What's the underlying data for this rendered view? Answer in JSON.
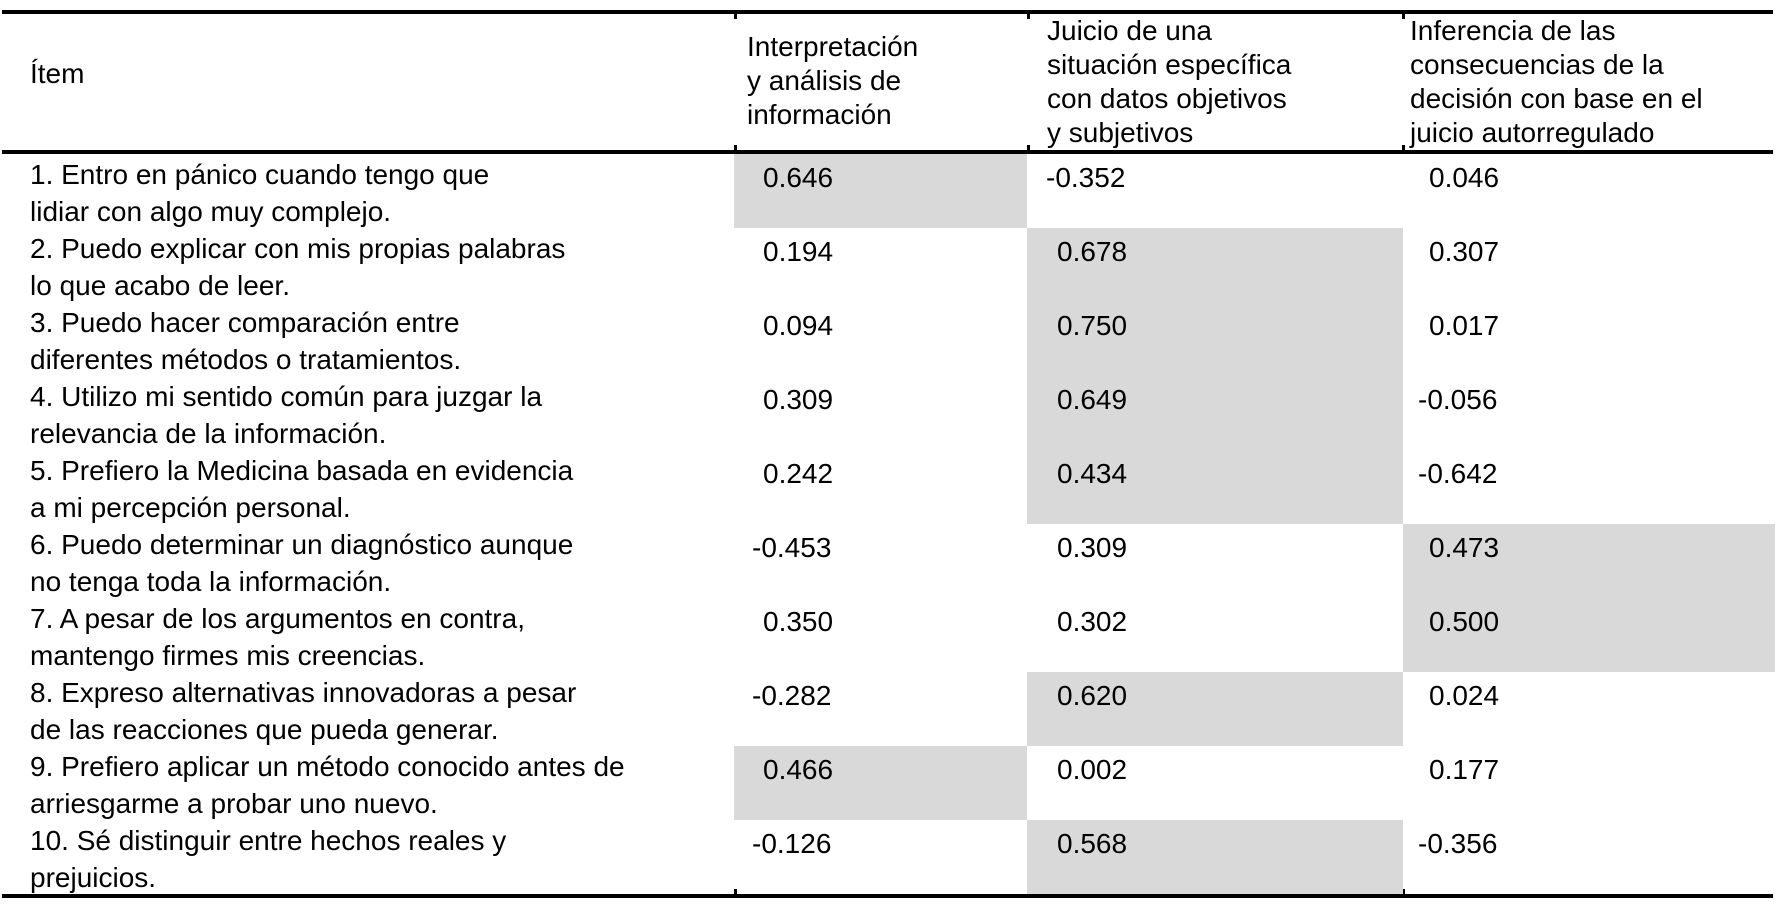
{
  "table": {
    "highlight_color": "#d9d9d9",
    "columns": [
      {
        "label": "Ítem"
      },
      {
        "label": "Interpretación\ny análisis de\ninformación"
      },
      {
        "label": "Juicio de una\nsituación específica\ncon datos objetivos\ny subjetivos"
      },
      {
        "label": "Inferencia de las\nconsecuencias de la\ndecisión con base en el\njuicio autorregulado"
      }
    ],
    "rows": [
      {
        "item": "1. Entro en pánico cuando tengo que\nlidiar con algo muy complejo.",
        "values": [
          "0.646",
          "-0.352",
          "0.046"
        ],
        "highlight": 0
      },
      {
        "item": "2. Puedo explicar con mis propias palabras\nlo que acabo de leer.",
        "values": [
          "0.194",
          "0.678",
          "0.307"
        ],
        "highlight": 1
      },
      {
        "item": "3. Puedo hacer comparación entre\ndiferentes métodos o tratamientos.",
        "values": [
          "0.094",
          "0.750",
          "0.017"
        ],
        "highlight": 1
      },
      {
        "item": "4. Utilizo mi sentido común para juzgar la\nrelevancia de la información.",
        "values": [
          "0.309",
          "0.649",
          "-0.056"
        ],
        "highlight": 1
      },
      {
        "item": "5. Prefiero la Medicina basada en evidencia\na mi percepción personal.",
        "values": [
          "0.242",
          "0.434",
          "-0.642"
        ],
        "highlight": 1
      },
      {
        "item": "6. Puedo determinar un diagnóstico aunque\nno tenga toda la información.",
        "values": [
          "-0.453",
          "0.309",
          "0.473"
        ],
        "highlight": 2
      },
      {
        "item": "7. A pesar de los argumentos en contra,\nmantengo firmes mis creencias.",
        "values": [
          "0.350",
          "0.302",
          "0.500"
        ],
        "highlight": 2
      },
      {
        "item": "8. Expreso alternativas innovadoras a pesar\nde las reacciones que pueda generar.",
        "values": [
          "-0.282",
          "0.620",
          "0.024"
        ],
        "highlight": 1
      },
      {
        "item": "9. Prefiero aplicar un método conocido antes de\narriesgarme a probar uno nuevo.",
        "values": [
          "0.466",
          "0.002",
          "0.177"
        ],
        "highlight": 0
      },
      {
        "item": "10. Sé distinguir entre hechos reales y\nprejuicios.",
        "values": [
          "-0.126",
          "0.568",
          "-0.356"
        ],
        "highlight": 1
      }
    ]
  }
}
